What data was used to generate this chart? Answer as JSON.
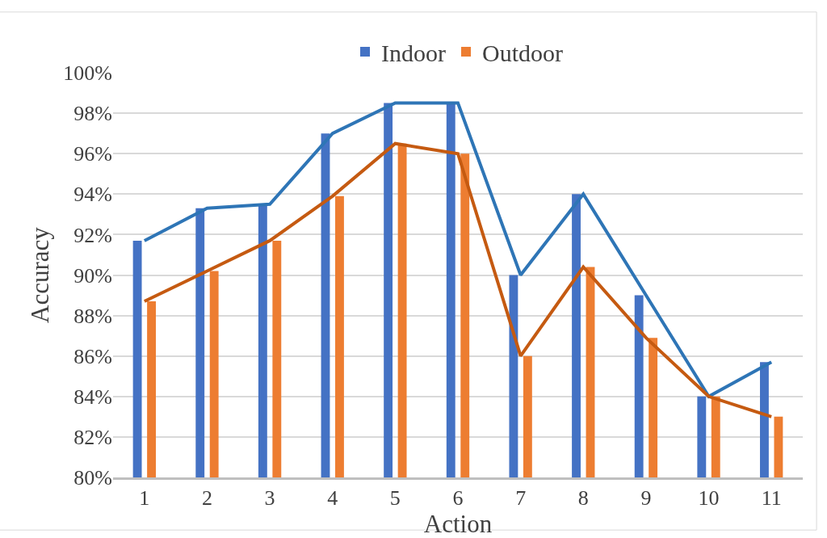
{
  "chart_data": {
    "type": "bar",
    "xlabel": "Action",
    "ylabel": "Accuracy",
    "categories": [
      "1",
      "2",
      "3",
      "4",
      "5",
      "6",
      "7",
      "8",
      "9",
      "10",
      "11"
    ],
    "series": [
      {
        "name": "Indoor",
        "color": "#4472c4",
        "values": [
          91.7,
          93.3,
          93.5,
          97.0,
          98.5,
          98.5,
          90.0,
          94.0,
          89.0,
          84.0,
          85.7
        ]
      },
      {
        "name": "Outdoor",
        "color": "#ed7d31",
        "values": [
          88.7,
          90.2,
          91.7,
          93.9,
          96.5,
          96.0,
          86.0,
          90.4,
          86.9,
          84.0,
          83.0
        ]
      },
      {
        "type": "line",
        "color": "#2e75b6",
        "values": [
          91.7,
          93.3,
          93.5,
          97.0,
          98.5,
          98.5,
          90.0,
          94.0,
          89.0,
          84.0,
          85.7
        ]
      },
      {
        "type": "line",
        "color": "#c55a11",
        "values": [
          88.7,
          90.2,
          91.7,
          93.9,
          96.5,
          96.0,
          86.0,
          90.4,
          86.9,
          84.0,
          83.0
        ]
      }
    ],
    "ylim": [
      80,
      100
    ],
    "yticks": [
      {
        "value": 80,
        "label": "80%"
      },
      {
        "value": 82,
        "label": "82%"
      },
      {
        "value": 84,
        "label": "84%"
      },
      {
        "value": 86,
        "label": "86%"
      },
      {
        "value": 88,
        "label": "88%"
      },
      {
        "value": 90,
        "label": "90%"
      },
      {
        "value": 92,
        "label": "92%"
      },
      {
        "value": 94,
        "label": "94%"
      },
      {
        "value": 96,
        "label": "96%"
      },
      {
        "value": 98,
        "label": "98%"
      },
      {
        "value": 100,
        "label": "100%"
      }
    ],
    "grid": "y",
    "legend": "top",
    "marker": "none",
    "line_style": "solid"
  }
}
